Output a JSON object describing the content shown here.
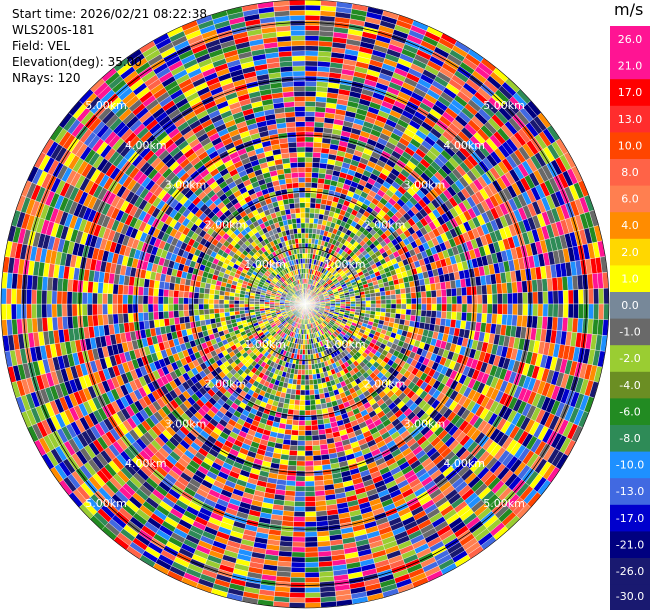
{
  "header": {
    "start_time": "Start time: 2026/02/21 08:22:38",
    "instrument": "WLS200s-181",
    "field": "Field: VEL",
    "elevation": "Elevation(deg): 35.00",
    "nrays": "NRays: 120"
  },
  "chart_data": {
    "type": "heatmap",
    "projection": "polar-ppi",
    "field": "VEL",
    "nrays": 120,
    "range_rings_km": [
      1.0,
      2.0,
      3.0,
      4.0,
      5.0
    ],
    "range_ring_labels": [
      "1.00km",
      "2.00km",
      "3.00km",
      "4.00km",
      "5.00km"
    ],
    "max_range_km": 5.4,
    "colorbar": {
      "unit": "m/s",
      "tick_labels": [
        "26.0",
        "21.0",
        "17.0",
        "13.0",
        "10.0",
        "8.0",
        "6.0",
        "4.0",
        "2.0",
        "1.0",
        "0.0",
        "-1.0",
        "-2.0",
        "-4.0",
        "-6.0",
        "-8.0",
        "-10.0",
        "-13.0",
        "-17.0",
        "-21.0",
        "-26.0",
        "-30.0"
      ],
      "colors": [
        "#ff1493",
        "#ff1493",
        "#ff0000",
        "#ff2d2d",
        "#ff4500",
        "#ff6347",
        "#ff7f50",
        "#ff8c00",
        "#ffd700",
        "#ffff00",
        "#778899",
        "#696969",
        "#9acd32",
        "#6b8e23",
        "#228b22",
        "#2e8b57",
        "#1e90ff",
        "#4169e1",
        "#0000cd",
        "#000080",
        "#191970",
        "#191970"
      ]
    }
  }
}
